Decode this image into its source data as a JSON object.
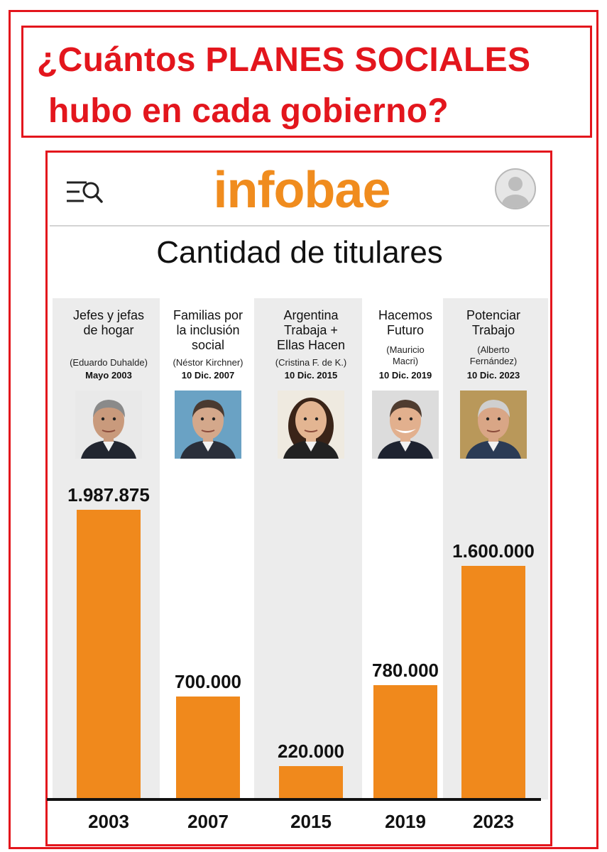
{
  "headline": {
    "line1": "¿Cuántos PLANES SOCIALES",
    "line2": "hubo en cada gobierno?"
  },
  "app": {
    "logo": "infobae",
    "menu_icon": "menu-search-icon",
    "avatar_icon": "user-avatar-icon"
  },
  "colors": {
    "accent_red": "#e3161d",
    "bar_orange": "#f0891c",
    "logo_orange": "#f08c1e",
    "column_shade": "#ececec"
  },
  "chart_data": {
    "type": "bar",
    "title": "Cantidad de titulares",
    "categories": [
      "2003",
      "2007",
      "2015",
      "2019",
      "2023"
    ],
    "values": [
      1987875,
      700000,
      220000,
      780000,
      1600000
    ],
    "value_labels": [
      "1.987.875",
      "700.000",
      "220.000",
      "780.000",
      "1.600.000"
    ],
    "programs": [
      [
        "Jefes y jefas",
        "de hogar"
      ],
      [
        "Familias por",
        "la inclusión",
        "social"
      ],
      [
        "Argentina",
        "Trabaja +",
        "Ellas Hacen"
      ],
      [
        "Hacemos",
        "Futuro"
      ],
      [
        "Potenciar",
        "Trabajo"
      ]
    ],
    "leaders": [
      [
        "(Eduardo Duhalde)"
      ],
      [
        "(Néstor Kirchner)"
      ],
      [
        "(Cristina F. de K.)"
      ],
      [
        "(Mauricio",
        "Macri)"
      ],
      [
        "(Alberto",
        "Fernández)"
      ]
    ],
    "dates": [
      "Mayo 2003",
      "10 Dic. 2007",
      "10 Dic. 2015",
      "10 Dic. 2019",
      "10 Dic. 2023"
    ],
    "xlabel": "",
    "ylabel": "",
    "ylim": [
      0,
      2000000
    ],
    "grid": false,
    "legend": "none"
  }
}
